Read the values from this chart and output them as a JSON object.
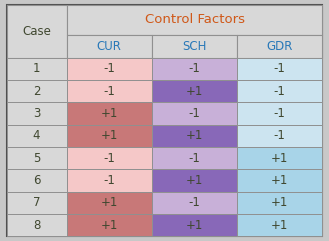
{
  "title": "Control Factors",
  "col_headers": [
    "Case",
    "CUR",
    "SCH",
    "GDR"
  ],
  "row_labels": [
    "1",
    "2",
    "3",
    "4",
    "5",
    "6",
    "7",
    "8"
  ],
  "table_data": [
    [
      "-1",
      "-1",
      "-1"
    ],
    [
      "-1",
      "+1",
      "-1"
    ],
    [
      "+1",
      "-1",
      "-1"
    ],
    [
      "+1",
      "+1",
      "-1"
    ],
    [
      "-1",
      "-1",
      "+1"
    ],
    [
      "-1",
      "+1",
      "+1"
    ],
    [
      "+1",
      "-1",
      "+1"
    ],
    [
      "+1",
      "+1",
      "+1"
    ]
  ],
  "cell_colors": [
    [
      "#f5c8c8",
      "#c8b0d8",
      "#cce4f0"
    ],
    [
      "#f5c8c8",
      "#8868b8",
      "#cce4f0"
    ],
    [
      "#c87878",
      "#c8b0d8",
      "#cce4f0"
    ],
    [
      "#c87878",
      "#8868b8",
      "#cce4f0"
    ],
    [
      "#f5c8c8",
      "#c8b0d8",
      "#a8d4e8"
    ],
    [
      "#f5c8c8",
      "#8868b8",
      "#a8d4e8"
    ],
    [
      "#c87878",
      "#c8b0d8",
      "#a8d4e8"
    ],
    [
      "#c87878",
      "#8868b8",
      "#a8d4e8"
    ]
  ],
  "header_bg": "#d8d8d8",
  "title_color": "#d05818",
  "header_text_color": "#2878b8",
  "body_text_color": "#404830",
  "fig_bg": "#c8c8c8",
  "border_color": "#505050",
  "grid_color": "#909090",
  "title_fontsize": 9.5,
  "header_fontsize": 8.5,
  "body_fontsize": 8.5
}
